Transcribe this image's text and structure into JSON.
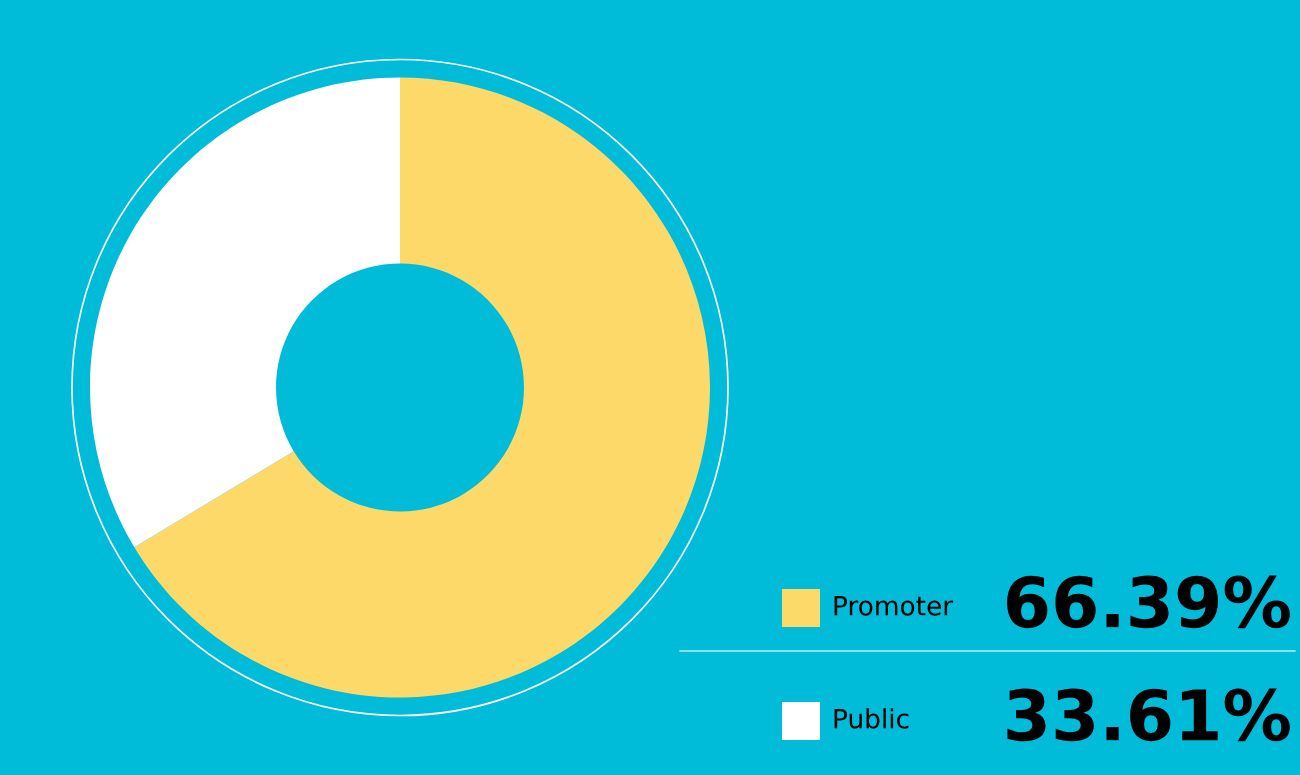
{
  "chart_data": {
    "type": "donut",
    "categories": [
      "Promoter",
      "Public"
    ],
    "values": [
      66.39,
      33.61
    ],
    "colors": [
      "#fdd96a",
      "#ffffff"
    ],
    "value_labels": [
      "66.39%",
      "33.61%"
    ],
    "legend": "bottom right"
  }
}
